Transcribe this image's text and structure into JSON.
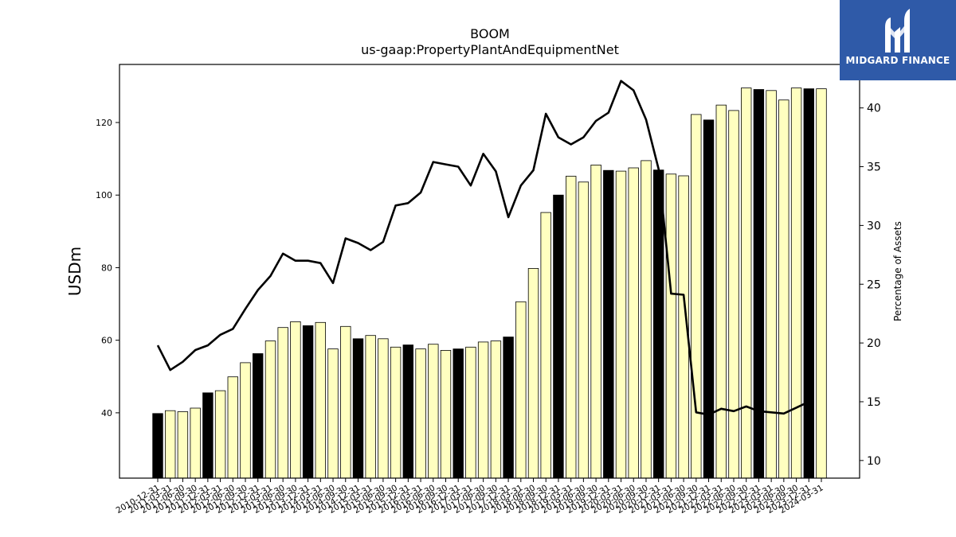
{
  "brand": {
    "name": "MIDGARD FINANCE"
  },
  "chart_data": {
    "type": "bar",
    "title": "BOOM",
    "subtitle": "us-gaap:PropertyPlantAndEquipmentNet",
    "ylabel": "USDm",
    "y2label": "Percentage of Assets",
    "ylim": [
      22,
      136
    ],
    "y2lim": [
      8.5,
      43.7
    ],
    "yticks": [
      40,
      60,
      80,
      100,
      120
    ],
    "y2ticks": [
      10,
      15,
      20,
      25,
      30,
      35,
      40
    ],
    "colors": {
      "annual": "#000000",
      "quarter": "#ffffc0",
      "bar_edge": "#000000",
      "line": "#000000"
    },
    "categories": [
      "2010-12-31",
      "2011-03-31",
      "2011-06-30",
      "2011-09-30",
      "2011-12-31",
      "2012-03-31",
      "2012-06-30",
      "2012-09-30",
      "2012-12-31",
      "2013-03-31",
      "2013-06-30",
      "2013-09-30",
      "2013-12-31",
      "2014-03-31",
      "2014-06-30",
      "2014-09-30",
      "2014-12-31",
      "2015-03-31",
      "2015-06-30",
      "2015-09-30",
      "2015-12-31",
      "2016-03-31",
      "2016-06-30",
      "2016-09-30",
      "2016-12-31",
      "2017-03-31",
      "2017-06-30",
      "2017-09-30",
      "2017-12-31",
      "2018-03-31",
      "2018-06-30",
      "2018-09-30",
      "2018-12-31",
      "2019-03-31",
      "2019-06-30",
      "2019-09-30",
      "2019-12-31",
      "2020-03-31",
      "2020-06-30",
      "2020-09-30",
      "2020-12-31",
      "2021-03-31",
      "2021-06-30",
      "2021-09-30",
      "2021-12-31",
      "2022-03-31",
      "2022-06-30",
      "2022-09-30",
      "2022-12-31",
      "2023-03-31",
      "2023-06-30",
      "2023-09-30",
      "2023-12-31",
      "2024-03-31"
    ],
    "series": [
      {
        "values": [
          39.8,
          40.6,
          40.3,
          41.3,
          45.5,
          46.1,
          49.9,
          53.8,
          56.3,
          59.8,
          63.5,
          65.1,
          64.0,
          64.9,
          57.6,
          63.8,
          60.4,
          61.3,
          60.4,
          58.1,
          58.7,
          57.6,
          58.9,
          57.2,
          57.6,
          58.1,
          59.5,
          59.8,
          60.9,
          70.6,
          79.8,
          95.2,
          100.0,
          105.2,
          103.6,
          108.3,
          106.8,
          106.6,
          107.5,
          109.5,
          106.9,
          105.8,
          105.3,
          122.2,
          120.7,
          124.8,
          123.3,
          129.5,
          129.1,
          128.8,
          126.2,
          129.5,
          129.3,
          129.3
        ]
      },
      {
        "values": [
          19.8,
          17.7,
          18.4,
          19.4,
          19.8,
          20.7,
          21.2,
          22.9,
          24.5,
          25.7,
          27.6,
          27.0,
          27.0,
          26.8,
          25.1,
          28.9,
          28.5,
          27.9,
          28.6,
          31.7,
          31.9,
          32.8,
          35.4,
          35.2,
          35.0,
          33.4,
          36.1,
          34.6,
          30.7,
          33.4,
          34.7,
          39.5,
          37.5,
          36.9,
          37.5,
          38.9,
          39.6,
          42.3,
          41.5,
          39.0,
          34.8,
          24.2,
          24.1,
          14.1,
          13.9,
          14.4,
          14.2,
          14.6,
          14.2,
          14.1,
          14.0,
          14.5,
          15.0,
          null
        ]
      }
    ]
  }
}
